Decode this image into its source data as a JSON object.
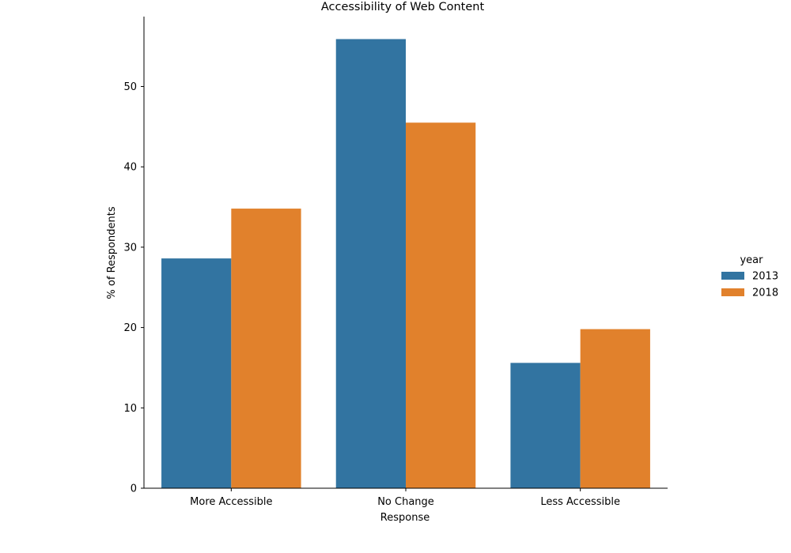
{
  "chart_data": {
    "type": "bar",
    "title": "Accessibility of Web Content",
    "xlabel": "Response",
    "ylabel": "% of Respondents",
    "categories": [
      "More Accessible",
      "No Change",
      "Less Accessible"
    ],
    "series": [
      {
        "name": "2013",
        "values": [
          28.6,
          55.9,
          15.6
        ],
        "color": "#3274a1"
      },
      {
        "name": "2018",
        "values": [
          34.8,
          45.5,
          19.8
        ],
        "color": "#e1812c"
      }
    ],
    "ylim": [
      0,
      58.7
    ],
    "yticks": [
      0,
      10,
      20,
      30,
      40,
      50
    ],
    "grid": false,
    "legend": {
      "title": "year",
      "placement": "right"
    }
  }
}
